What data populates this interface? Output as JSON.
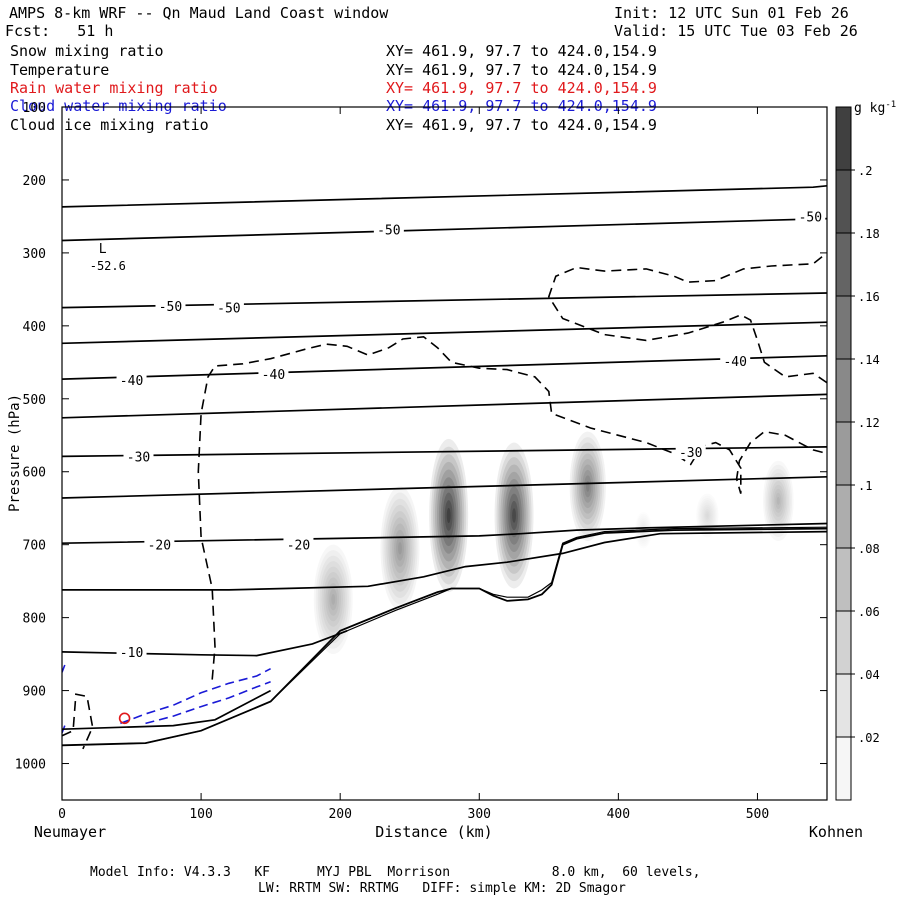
{
  "header": {
    "title": "AMPS 8-km WRF -- Qn Maud Land Coast window",
    "init": "Init: 12 UTC Sun 01 Feb 26",
    "fcst": "Fcst:   51 h",
    "valid": "Valid: 15 UTC Tue 03 Feb 26"
  },
  "legend": [
    {
      "name": "Snow mixing ratio",
      "xy": "XY= 461.9, 97.7 to 424.0,154.9",
      "color": "#000000"
    },
    {
      "name": "Temperature",
      "xy": "XY= 461.9, 97.7 to 424.0,154.9",
      "color": "#000000"
    },
    {
      "name": "Rain water mixing ratio",
      "xy": "XY= 461.9, 97.7 to 424.0,154.9",
      "color": "#e0191c"
    },
    {
      "name": "Cloud water mixing ratio",
      "xy": "XY= 461.9, 97.7 to 424.0,154.9",
      "color": "#1a1ad6"
    },
    {
      "name": "Cloud ice mixing ratio",
      "xy": "XY= 461.9, 97.7 to 424.0,154.9",
      "color": "#000000"
    }
  ],
  "footer": {
    "line1": "Model Info: V4.3.3   KF      MYJ PBL  Morrison             8.0 km,  60 levels,",
    "line2": "LW: RRTM SW: RRTMG   DIFF: simple KM: 2D Smagor"
  },
  "chart_data": {
    "type": "cross-section",
    "xlabel": "Distance (km)",
    "ylabel": "Pressure (hPa)",
    "x_left_label": "Neumayer",
    "x_right_label": "Kohnen",
    "xlim": [
      0,
      550
    ],
    "ylim": [
      1050,
      100
    ],
    "x_ticks": [
      0,
      100,
      200,
      300,
      400,
      500
    ],
    "y_ticks": [
      100,
      200,
      300,
      400,
      500,
      600,
      700,
      800,
      900,
      1000
    ],
    "colorbar": {
      "unit": "g kg",
      "unit_exp": "-1",
      "ticks": [
        ".02",
        ".04",
        ".06",
        ".08",
        ".1",
        ".12",
        ".14",
        ".16",
        ".18",
        ".2"
      ],
      "max": 0.22
    },
    "low_marker": {
      "label": "L",
      "value": "-52.6",
      "x_km": 30,
      "p_hpa": 310
    },
    "temperature_labels": [
      {
        "text": "-50",
        "x_km": 235,
        "p_hpa": 268
      },
      {
        "text": "-50",
        "x_km": 538,
        "p_hpa": 250
      },
      {
        "text": "-50",
        "x_km": 78,
        "p_hpa": 373
      },
      {
        "text": "-50",
        "x_km": 120,
        "p_hpa": 375
      },
      {
        "text": "-40",
        "x_km": 50,
        "p_hpa": 474
      },
      {
        "text": "-40",
        "x_km": 152,
        "p_hpa": 466
      },
      {
        "text": "-40",
        "x_km": 484,
        "p_hpa": 448
      },
      {
        "text": "-30",
        "x_km": 55,
        "p_hpa": 579
      },
      {
        "text": "-30",
        "x_km": 452,
        "p_hpa": 573
      },
      {
        "text": "-20",
        "x_km": 70,
        "p_hpa": 700
      },
      {
        "text": "-20",
        "x_km": 170,
        "p_hpa": 700
      },
      {
        "text": "-10",
        "x_km": 50,
        "p_hpa": 847
      }
    ],
    "temperature_contours": [
      [
        [
          0,
          237
        ],
        [
          540,
          210
        ],
        [
          550,
          208
        ]
      ],
      [
        [
          0,
          283
        ],
        [
          550,
          253
        ]
      ],
      [
        [
          0,
          375
        ],
        [
          550,
          355
        ]
      ],
      [
        [
          0,
          424
        ],
        [
          550,
          395
        ]
      ],
      [
        [
          0,
          473
        ],
        [
          550,
          441
        ]
      ],
      [
        [
          0,
          526
        ],
        [
          550,
          494
        ]
      ],
      [
        [
          0,
          579
        ],
        [
          550,
          566
        ]
      ],
      [
        [
          0,
          636
        ],
        [
          550,
          607
        ]
      ],
      [
        [
          0,
          698
        ],
        [
          300,
          688
        ],
        [
          330,
          685
        ],
        [
          370,
          680
        ],
        [
          420,
          677
        ],
        [
          550,
          671
        ]
      ],
      [
        [
          0,
          762
        ],
        [
          120,
          762
        ],
        [
          160,
          760
        ],
        [
          220,
          757
        ],
        [
          260,
          744
        ],
        [
          290,
          730
        ],
        [
          320,
          724
        ],
        [
          360,
          712
        ],
        [
          390,
          697
        ],
        [
          430,
          685
        ],
        [
          550,
          682
        ]
      ],
      [
        [
          0,
          847
        ],
        [
          50,
          849
        ],
        [
          100,
          851
        ],
        [
          140,
          852
        ],
        [
          180,
          836
        ],
        [
          205,
          818
        ]
      ],
      [
        [
          0,
          953
        ],
        [
          80,
          948
        ],
        [
          110,
          940
        ],
        [
          150,
          900
        ]
      ]
    ],
    "snow_cores": [
      {
        "x_km": 195,
        "p_hpa": 775,
        "max": 0.09,
        "half_width_km": 14,
        "half_height_hpa": 75
      },
      {
        "x_km": 243,
        "p_hpa": 705,
        "max": 0.11,
        "half_width_km": 14,
        "half_height_hpa": 85
      },
      {
        "x_km": 278,
        "p_hpa": 660,
        "max": 0.21,
        "half_width_km": 14,
        "half_height_hpa": 105
      },
      {
        "x_km": 325,
        "p_hpa": 660,
        "max": 0.2,
        "half_width_km": 14,
        "half_height_hpa": 100
      },
      {
        "x_km": 378,
        "p_hpa": 620,
        "max": 0.14,
        "half_width_km": 13,
        "half_height_hpa": 75
      },
      {
        "x_km": 418,
        "p_hpa": 680,
        "max": 0.025,
        "half_width_km": 6,
        "half_height_hpa": 25
      },
      {
        "x_km": 464,
        "p_hpa": 660,
        "max": 0.04,
        "half_width_km": 8,
        "half_height_hpa": 30
      },
      {
        "x_km": 515,
        "p_hpa": 640,
        "max": 0.08,
        "half_width_km": 11,
        "half_height_hpa": 55
      }
    ],
    "terrain_top": [
      [
        0,
        975
      ],
      [
        60,
        972
      ],
      [
        100,
        955
      ],
      [
        150,
        915
      ],
      [
        200,
        818
      ],
      [
        240,
        787
      ],
      [
        270,
        765
      ],
      [
        280,
        760
      ],
      [
        300,
        760
      ],
      [
        310,
        770
      ],
      [
        320,
        777
      ],
      [
        335,
        775
      ],
      [
        345,
        768
      ],
      [
        352,
        755
      ],
      [
        360,
        700
      ],
      [
        370,
        692
      ],
      [
        390,
        684
      ],
      [
        440,
        680
      ],
      [
        550,
        678
      ]
    ],
    "terrain_bottom": [
      [
        0,
        975
      ],
      [
        60,
        972
      ],
      [
        100,
        955
      ],
      [
        150,
        915
      ],
      [
        200,
        822
      ],
      [
        240,
        790
      ],
      [
        270,
        768
      ],
      [
        280,
        760
      ],
      [
        300,
        760
      ],
      [
        310,
        768
      ],
      [
        320,
        772
      ],
      [
        335,
        772
      ],
      [
        345,
        762
      ],
      [
        352,
        752
      ],
      [
        360,
        698
      ],
      [
        370,
        690
      ],
      [
        390,
        682
      ],
      [
        440,
        678
      ],
      [
        550,
        676
      ]
    ],
    "cloud_ice_contour_dashed": [
      [
        [
          108,
          885
        ],
        [
          110,
          840
        ],
        [
          108,
          760
        ],
        [
          100,
          690
        ],
        [
          98,
          600
        ],
        [
          100,
          520
        ],
        [
          105,
          470
        ],
        [
          110,
          455
        ],
        [
          130,
          452
        ],
        [
          150,
          445
        ],
        [
          175,
          432
        ],
        [
          190,
          425
        ],
        [
          205,
          428
        ],
        [
          220,
          440
        ],
        [
          235,
          430
        ],
        [
          245,
          418
        ],
        [
          260,
          415
        ],
        [
          270,
          430
        ],
        [
          280,
          450
        ],
        [
          300,
          458
        ],
        [
          320,
          460
        ],
        [
          340,
          470
        ],
        [
          350,
          490
        ],
        [
          352,
          520
        ],
        [
          380,
          540
        ],
        [
          420,
          560
        ],
        [
          440,
          575
        ],
        [
          452,
          590
        ],
        [
          460,
          565
        ],
        [
          470,
          560
        ],
        [
          480,
          570
        ],
        [
          488,
          595
        ],
        [
          488,
          630
        ],
        [
          485,
          610
        ],
        [
          487,
          585
        ],
        [
          495,
          560
        ],
        [
          505,
          545
        ],
        [
          520,
          550
        ],
        [
          540,
          570
        ],
        [
          550,
          575
        ]
      ],
      [
        [
          550,
          478
        ],
        [
          540,
          465
        ],
        [
          520,
          470
        ],
        [
          505,
          450
        ],
        [
          500,
          420
        ],
        [
          495,
          392
        ],
        [
          488,
          385
        ],
        [
          475,
          395
        ],
        [
          450,
          410
        ],
        [
          420,
          420
        ],
        [
          390,
          412
        ],
        [
          360,
          390
        ],
        [
          350,
          360
        ],
        [
          355,
          332
        ],
        [
          370,
          320
        ],
        [
          390,
          325
        ],
        [
          420,
          322
        ],
        [
          440,
          332
        ],
        [
          450,
          340
        ],
        [
          470,
          338
        ],
        [
          490,
          322
        ],
        [
          510,
          318
        ],
        [
          540,
          315
        ],
        [
          550,
          300
        ]
      ],
      [
        [
          0,
          962
        ],
        [
          8,
          955
        ],
        [
          10,
          905
        ],
        [
          18,
          908
        ],
        [
          22,
          950
        ],
        [
          15,
          980
        ]
      ]
    ],
    "cloud_water_contour_dashed": [
      [
        [
          42,
          945
        ],
        [
          60,
          932
        ],
        [
          80,
          920
        ],
        [
          100,
          903
        ],
        [
          120,
          890
        ],
        [
          140,
          880
        ],
        [
          150,
          870
        ]
      ],
      [
        [
          60,
          945
        ],
        [
          80,
          935
        ],
        [
          100,
          922
        ],
        [
          120,
          910
        ],
        [
          140,
          895
        ],
        [
          150,
          888
        ]
      ],
      [
        [
          0,
          875
        ],
        [
          2,
          865
        ]
      ],
      [
        [
          0,
          958
        ],
        [
          2,
          948
        ]
      ]
    ],
    "rain_marker": {
      "x_km": 45,
      "p_hpa": 938
    }
  }
}
